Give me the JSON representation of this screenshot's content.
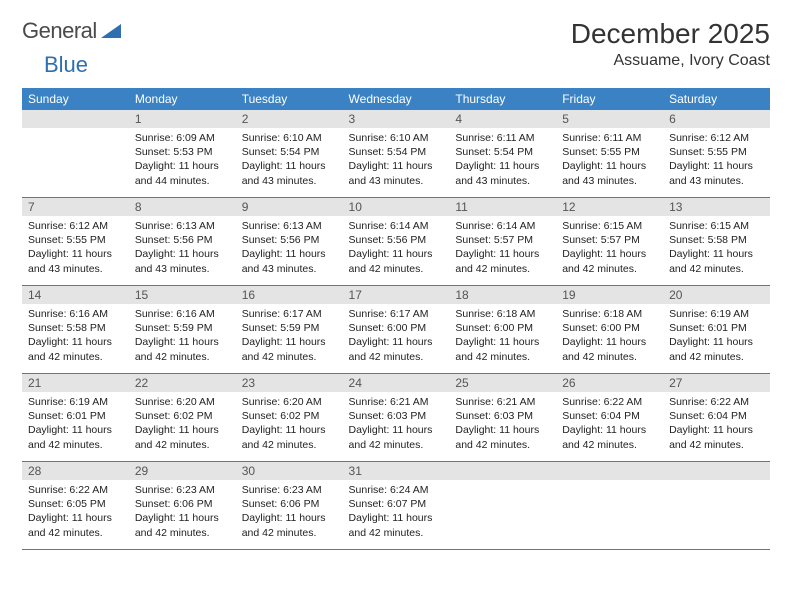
{
  "brand": {
    "part1": "General",
    "part2": "Blue"
  },
  "brand_colors": {
    "text": "#4a4a4a",
    "accent": "#2f6fb0",
    "triangle": "#2f6fb0"
  },
  "title": "December 2025",
  "location": "Assuame, Ivory Coast",
  "day_headers": [
    "Sunday",
    "Monday",
    "Tuesday",
    "Wednesday",
    "Thursday",
    "Friday",
    "Saturday"
  ],
  "header_bg": "#3b82c4",
  "header_fg": "#ffffff",
  "daynum_bg": "#e4e4e4",
  "row_border": "#3b82c4",
  "weeks": [
    [
      {
        "n": "",
        "sr": "",
        "ss": "",
        "dl": "",
        "empty": true
      },
      {
        "n": "1",
        "sr": "Sunrise: 6:09 AM",
        "ss": "Sunset: 5:53 PM",
        "dl": "Daylight: 11 hours and 44 minutes."
      },
      {
        "n": "2",
        "sr": "Sunrise: 6:10 AM",
        "ss": "Sunset: 5:54 PM",
        "dl": "Daylight: 11 hours and 43 minutes."
      },
      {
        "n": "3",
        "sr": "Sunrise: 6:10 AM",
        "ss": "Sunset: 5:54 PM",
        "dl": "Daylight: 11 hours and 43 minutes."
      },
      {
        "n": "4",
        "sr": "Sunrise: 6:11 AM",
        "ss": "Sunset: 5:54 PM",
        "dl": "Daylight: 11 hours and 43 minutes."
      },
      {
        "n": "5",
        "sr": "Sunrise: 6:11 AM",
        "ss": "Sunset: 5:55 PM",
        "dl": "Daylight: 11 hours and 43 minutes."
      },
      {
        "n": "6",
        "sr": "Sunrise: 6:12 AM",
        "ss": "Sunset: 5:55 PM",
        "dl": "Daylight: 11 hours and 43 minutes."
      }
    ],
    [
      {
        "n": "7",
        "sr": "Sunrise: 6:12 AM",
        "ss": "Sunset: 5:55 PM",
        "dl": "Daylight: 11 hours and 43 minutes."
      },
      {
        "n": "8",
        "sr": "Sunrise: 6:13 AM",
        "ss": "Sunset: 5:56 PM",
        "dl": "Daylight: 11 hours and 43 minutes."
      },
      {
        "n": "9",
        "sr": "Sunrise: 6:13 AM",
        "ss": "Sunset: 5:56 PM",
        "dl": "Daylight: 11 hours and 43 minutes."
      },
      {
        "n": "10",
        "sr": "Sunrise: 6:14 AM",
        "ss": "Sunset: 5:56 PM",
        "dl": "Daylight: 11 hours and 42 minutes."
      },
      {
        "n": "11",
        "sr": "Sunrise: 6:14 AM",
        "ss": "Sunset: 5:57 PM",
        "dl": "Daylight: 11 hours and 42 minutes."
      },
      {
        "n": "12",
        "sr": "Sunrise: 6:15 AM",
        "ss": "Sunset: 5:57 PM",
        "dl": "Daylight: 11 hours and 42 minutes."
      },
      {
        "n": "13",
        "sr": "Sunrise: 6:15 AM",
        "ss": "Sunset: 5:58 PM",
        "dl": "Daylight: 11 hours and 42 minutes."
      }
    ],
    [
      {
        "n": "14",
        "sr": "Sunrise: 6:16 AM",
        "ss": "Sunset: 5:58 PM",
        "dl": "Daylight: 11 hours and 42 minutes."
      },
      {
        "n": "15",
        "sr": "Sunrise: 6:16 AM",
        "ss": "Sunset: 5:59 PM",
        "dl": "Daylight: 11 hours and 42 minutes."
      },
      {
        "n": "16",
        "sr": "Sunrise: 6:17 AM",
        "ss": "Sunset: 5:59 PM",
        "dl": "Daylight: 11 hours and 42 minutes."
      },
      {
        "n": "17",
        "sr": "Sunrise: 6:17 AM",
        "ss": "Sunset: 6:00 PM",
        "dl": "Daylight: 11 hours and 42 minutes."
      },
      {
        "n": "18",
        "sr": "Sunrise: 6:18 AM",
        "ss": "Sunset: 6:00 PM",
        "dl": "Daylight: 11 hours and 42 minutes."
      },
      {
        "n": "19",
        "sr": "Sunrise: 6:18 AM",
        "ss": "Sunset: 6:00 PM",
        "dl": "Daylight: 11 hours and 42 minutes."
      },
      {
        "n": "20",
        "sr": "Sunrise: 6:19 AM",
        "ss": "Sunset: 6:01 PM",
        "dl": "Daylight: 11 hours and 42 minutes."
      }
    ],
    [
      {
        "n": "21",
        "sr": "Sunrise: 6:19 AM",
        "ss": "Sunset: 6:01 PM",
        "dl": "Daylight: 11 hours and 42 minutes."
      },
      {
        "n": "22",
        "sr": "Sunrise: 6:20 AM",
        "ss": "Sunset: 6:02 PM",
        "dl": "Daylight: 11 hours and 42 minutes."
      },
      {
        "n": "23",
        "sr": "Sunrise: 6:20 AM",
        "ss": "Sunset: 6:02 PM",
        "dl": "Daylight: 11 hours and 42 minutes."
      },
      {
        "n": "24",
        "sr": "Sunrise: 6:21 AM",
        "ss": "Sunset: 6:03 PM",
        "dl": "Daylight: 11 hours and 42 minutes."
      },
      {
        "n": "25",
        "sr": "Sunrise: 6:21 AM",
        "ss": "Sunset: 6:03 PM",
        "dl": "Daylight: 11 hours and 42 minutes."
      },
      {
        "n": "26",
        "sr": "Sunrise: 6:22 AM",
        "ss": "Sunset: 6:04 PM",
        "dl": "Daylight: 11 hours and 42 minutes."
      },
      {
        "n": "27",
        "sr": "Sunrise: 6:22 AM",
        "ss": "Sunset: 6:04 PM",
        "dl": "Daylight: 11 hours and 42 minutes."
      }
    ],
    [
      {
        "n": "28",
        "sr": "Sunrise: 6:22 AM",
        "ss": "Sunset: 6:05 PM",
        "dl": "Daylight: 11 hours and 42 minutes."
      },
      {
        "n": "29",
        "sr": "Sunrise: 6:23 AM",
        "ss": "Sunset: 6:06 PM",
        "dl": "Daylight: 11 hours and 42 minutes."
      },
      {
        "n": "30",
        "sr": "Sunrise: 6:23 AM",
        "ss": "Sunset: 6:06 PM",
        "dl": "Daylight: 11 hours and 42 minutes."
      },
      {
        "n": "31",
        "sr": "Sunrise: 6:24 AM",
        "ss": "Sunset: 6:07 PM",
        "dl": "Daylight: 11 hours and 42 minutes."
      },
      {
        "n": "",
        "sr": "",
        "ss": "",
        "dl": "",
        "empty": true
      },
      {
        "n": "",
        "sr": "",
        "ss": "",
        "dl": "",
        "empty": true
      },
      {
        "n": "",
        "sr": "",
        "ss": "",
        "dl": "",
        "empty": true
      }
    ]
  ]
}
